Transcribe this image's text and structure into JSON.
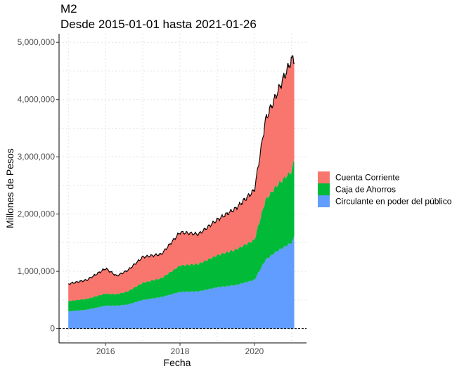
{
  "chart_data": {
    "type": "area",
    "stacked": true,
    "title": "M2",
    "subtitle": "Desde 2015-01-01 hasta 2021-01-26",
    "xlabel": "Fecha",
    "ylabel": "Millones de Pesos",
    "xlim": [
      "2015-01-01",
      "2021-01-26"
    ],
    "ylim": [
      0,
      5000000
    ],
    "x_ticks": [
      2016,
      2018,
      2020
    ],
    "x_tick_labels": [
      "2016",
      "2018",
      "2020"
    ],
    "y_ticks": [
      0,
      1000000,
      2000000,
      3000000,
      4000000,
      5000000
    ],
    "y_tick_labels": [
      "0",
      "1,000,000",
      "2,000,000",
      "3,000,000",
      "4,000,000",
      "5,000,000"
    ],
    "grid": true,
    "horizontal_reference_line": {
      "y": 0,
      "style": "dashed"
    },
    "total_line": true,
    "legend_position": "right",
    "x": [
      2015.0,
      2015.5,
      2016.0,
      2016.3,
      2016.6,
      2017.0,
      2017.5,
      2018.0,
      2018.5,
      2019.0,
      2019.5,
      2020.0,
      2020.3,
      2020.6,
      2021.0,
      2021.07
    ],
    "series": [
      {
        "name": "Circulante en poder del público",
        "color": "#619CFF",
        "values": [
          300000,
          330000,
          400000,
          400000,
          420000,
          500000,
          550000,
          640000,
          650000,
          720000,
          760000,
          850000,
          1200000,
          1350000,
          1500000,
          1600000
        ]
      },
      {
        "name": "Caja de Ahorros",
        "color": "#00BA38",
        "values": [
          180000,
          190000,
          210000,
          200000,
          230000,
          300000,
          330000,
          460000,
          480000,
          560000,
          620000,
          700000,
          1050000,
          1150000,
          1250000,
          1350000
        ]
      },
      {
        "name": "Cuenta Corriente",
        "color": "#F8766D",
        "values": [
          300000,
          330000,
          440000,
          320000,
          370000,
          450000,
          420000,
          580000,
          520000,
          620000,
          720000,
          870000,
          1400000,
          1600000,
          1950000,
          1750000
        ]
      }
    ]
  },
  "legend": [
    {
      "label": "Cuenta Corriente",
      "color": "#F8766D"
    },
    {
      "label": "Caja de Ahorros",
      "color": "#00BA38"
    },
    {
      "label": "Circulante en poder del público",
      "color": "#619CFF"
    }
  ]
}
